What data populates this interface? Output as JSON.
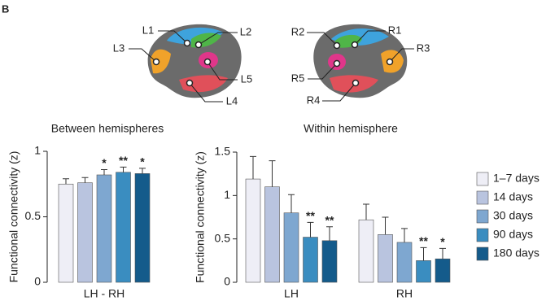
{
  "panel_label": "B",
  "brain": {
    "labels": [
      "L1",
      "L2",
      "L3",
      "L5",
      "L4",
      "R2",
      "R1",
      "R3",
      "R5",
      "R4"
    ]
  },
  "chart_data": [
    {
      "type": "bar",
      "title": "Between hemispheres",
      "y_label": "Functional connectivity (z)",
      "categories": [
        "LH - RH"
      ],
      "ylim": [
        0,
        1
      ],
      "yticks": [
        0,
        0.5,
        1
      ],
      "series": [
        {
          "color": "#eeeef6",
          "values": [
            0.75
          ],
          "errors": [
            0.04
          ],
          "stars": [
            null
          ]
        },
        {
          "color": "#b9c4df",
          "values": [
            0.76
          ],
          "errors": [
            0.04
          ],
          "stars": [
            null
          ]
        },
        {
          "color": "#7ea7d0",
          "values": [
            0.82
          ],
          "errors": [
            0.04
          ],
          "stars": [
            "*"
          ]
        },
        {
          "color": "#3a8dc0",
          "values": [
            0.84
          ],
          "errors": [
            0.04
          ],
          "stars": [
            "**"
          ]
        },
        {
          "color": "#145b8b",
          "values": [
            0.83
          ],
          "errors": [
            0.04
          ],
          "stars": [
            "*"
          ]
        }
      ]
    },
    {
      "type": "bar",
      "title": "Within hemisphere",
      "y_label": "Functional connectivity (z)",
      "categories": [
        "LH",
        "RH"
      ],
      "ylim": [
        0,
        1.5
      ],
      "yticks": [
        0,
        0.5,
        1,
        1.5
      ],
      "series": [
        {
          "name": "1–7 days",
          "color": "#eeeef6",
          "values": [
            1.19,
            0.72
          ],
          "errors": [
            0.26,
            0.18
          ],
          "stars": [
            null,
            null
          ]
        },
        {
          "name": "14 days",
          "color": "#b9c4df",
          "values": [
            1.1,
            0.55
          ],
          "errors": [
            0.3,
            0.2
          ],
          "stars": [
            null,
            null
          ]
        },
        {
          "name": "30 days",
          "color": "#7ea7d0",
          "values": [
            0.8,
            0.46
          ],
          "errors": [
            0.21,
            0.16
          ],
          "stars": [
            null,
            null
          ]
        },
        {
          "name": "90 days",
          "color": "#3a8dc0",
          "values": [
            0.52,
            0.25
          ],
          "errors": [
            0.17,
            0.15
          ],
          "stars": [
            "**",
            "**"
          ]
        },
        {
          "name": "180 days",
          "color": "#145b8b",
          "values": [
            0.48,
            0.27
          ],
          "errors": [
            0.16,
            0.12
          ],
          "stars": [
            "**",
            "*"
          ]
        }
      ]
    }
  ]
}
